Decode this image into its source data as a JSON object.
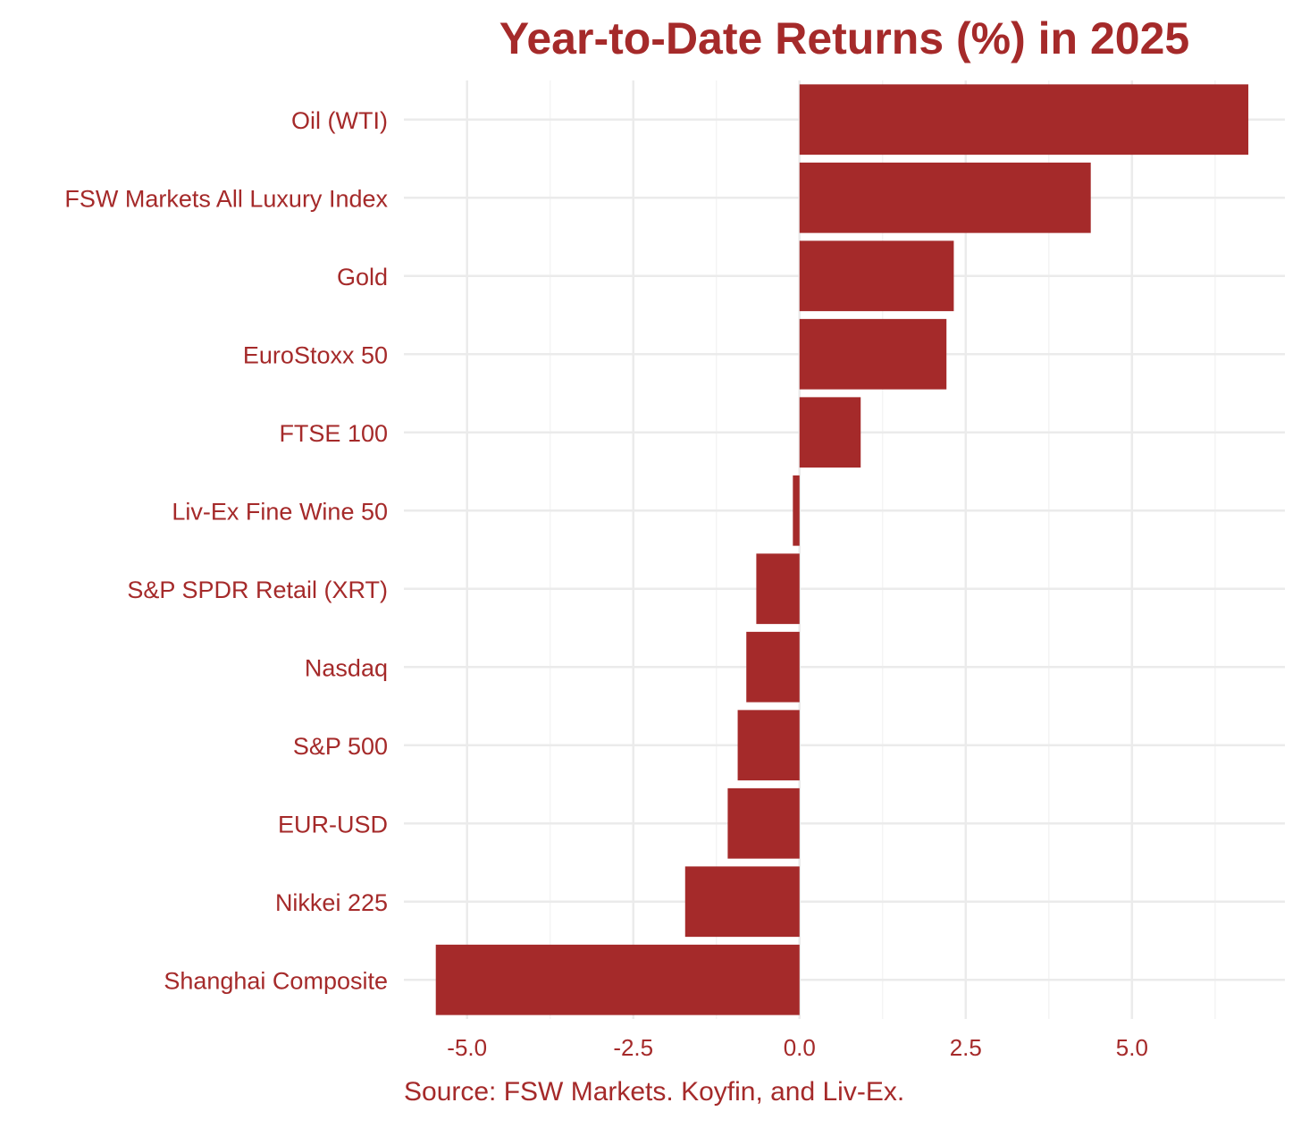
{
  "colors": {
    "bar": "#a52a2a",
    "text": "#a52a2a",
    "grid_major": "#ebebeb",
    "grid_minor": "#f4f4f4",
    "background": "#ffffff"
  },
  "chart_data": {
    "type": "bar",
    "orientation": "horizontal",
    "title": "Year-to-Date Returns (%) in 2025",
    "caption": "Source: FSW Markets. Koyfin, and Liv-Ex.",
    "xlabel": "",
    "ylabel": "",
    "categories": [
      "Oil (WTI)",
      "FSW Markets All Luxury Index",
      "Gold",
      "EuroStoxx 50",
      "FTSE 100",
      "Liv-Ex Fine Wine 50",
      "S&P SPDR Retail (XRT)",
      "Nasdaq",
      "S&P 500",
      "EUR-USD",
      "Nikkei 225",
      "Shanghai Composite"
    ],
    "values": [
      6.75,
      4.38,
      2.32,
      2.21,
      0.92,
      -0.1,
      -0.65,
      -0.8,
      -0.93,
      -1.08,
      -1.72,
      -5.47
    ],
    "xlim": [
      -5.95,
      7.3
    ],
    "xticks": [
      -5.0,
      -2.5,
      0.0,
      2.5,
      5.0
    ],
    "xtick_labels": [
      "-5.0",
      "-2.5",
      "0.0",
      "2.5",
      "5.0"
    ],
    "grid": true,
    "legend": "none"
  }
}
